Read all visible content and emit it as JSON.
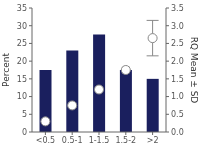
{
  "chart_data": {
    "type": "bar",
    "categories": [
      "<0.5",
      "0.5-1",
      "1-1.5",
      "1.5-2",
      ">2"
    ],
    "series": [
      {
        "type": "bar",
        "color": "#1a1f5e",
        "values": [
          17.5,
          23,
          27.5,
          17.5,
          15
        ],
        "errors": [
          null,
          null,
          null,
          0.8,
          null
        ]
      },
      {
        "type": "scatter",
        "axis": "y2",
        "color": "#ffffff",
        "marker": "circle",
        "values": [
          0.3,
          0.75,
          1.2,
          1.75,
          2.65
        ],
        "errors": [
          null,
          null,
          null,
          null,
          0.5
        ]
      }
    ],
    "ylabel": "Percent",
    "y2label": "RQ Mean ± SD",
    "ylim": [
      0,
      35
    ],
    "yticks": [
      0,
      5,
      10,
      15,
      20,
      25,
      30,
      35
    ],
    "y2lim": [
      0,
      3.5
    ],
    "y2ticks": [
      {
        "value": 0,
        "label": "0.0"
      },
      0.5,
      {
        "value": 1,
        "label": "1.0"
      },
      1.5,
      {
        "value": 2,
        "label": "2.0"
      },
      2.5,
      {
        "value": 3,
        "label": "3.0"
      },
      3.5
    ],
    "grid": false
  }
}
